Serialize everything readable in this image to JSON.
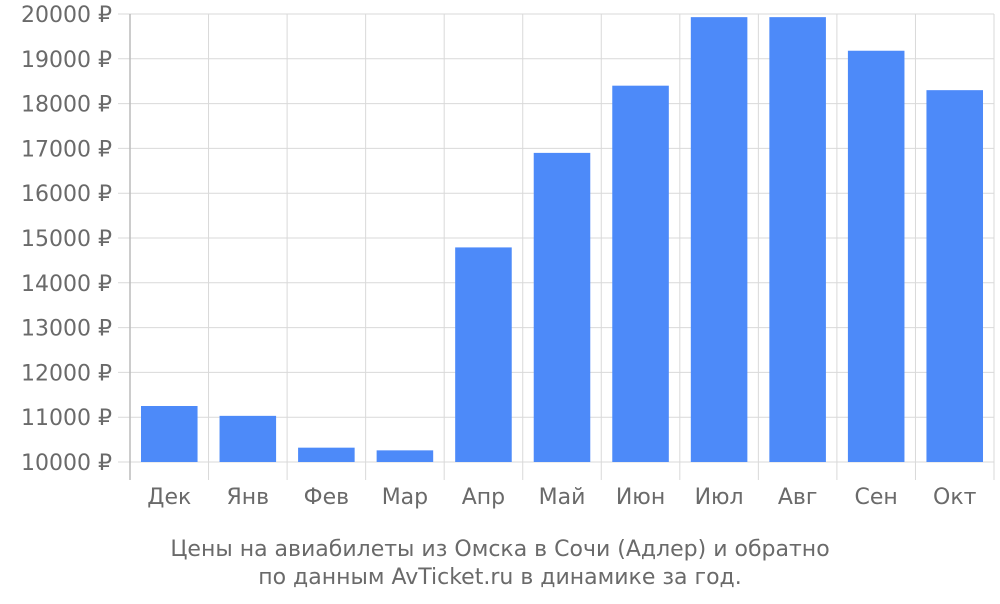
{
  "chart_data": {
    "type": "bar",
    "categories": [
      "Дек",
      "Янв",
      "Фев",
      "Мар",
      "Апр",
      "Май",
      "Июн",
      "Июл",
      "Авг",
      "Сен",
      "Окт"
    ],
    "values": [
      11250,
      11030,
      10320,
      10260,
      14790,
      16900,
      18400,
      19930,
      19930,
      19180,
      18300
    ],
    "ylim": [
      10000,
      20000
    ],
    "yticks": [
      10000,
      11000,
      12000,
      13000,
      14000,
      15000,
      16000,
      17000,
      18000,
      19000,
      20000
    ],
    "ytick_suffix": " ₽",
    "grid": true,
    "bar_color": "#4d8af9",
    "grid_color": "#d9d9d9",
    "axis_color": "#bbbbbb",
    "text_color": "#6a6a6a"
  },
  "caption": {
    "line1": "Цены на авиабилеты из Омска в Сочи (Адлер) и обратно",
    "line2": "по данным AvTicket.ru в динамике за год."
  }
}
